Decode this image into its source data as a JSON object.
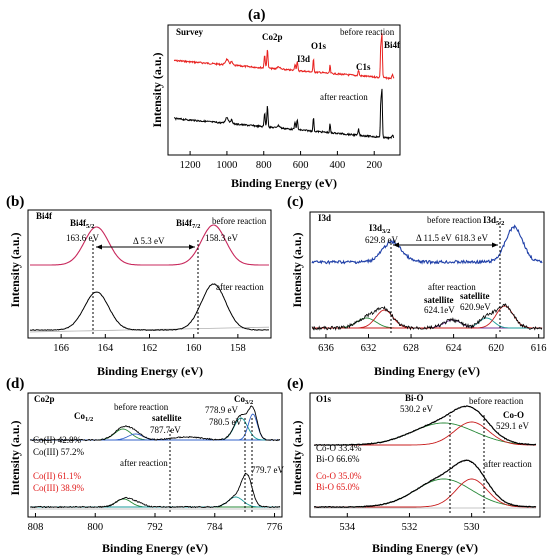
{
  "panels": [
    {
      "id": "a",
      "letter": "(a)",
      "name_label": "Survey",
      "xlabel": "Binding Energy (eV)",
      "ylabel": "Intensity (a.u.)",
      "xlim": [
        1320,
        60
      ],
      "xticks": [
        1200,
        1000,
        800,
        600,
        400,
        200
      ],
      "curve_labels": [
        "before reaction",
        "after reaction"
      ],
      "peak_labels": [
        "Co2p",
        "O1s",
        "I3d",
        "C1s",
        "Bi4f"
      ]
    },
    {
      "id": "b",
      "letter": "(b)",
      "name_label": "Bi4f",
      "xlabel": "Binding Energy (eV)",
      "ylabel": "Intensity (a.u.)",
      "xlim": [
        167.5,
        156.5
      ],
      "xticks": [
        166,
        164,
        162,
        160,
        158
      ],
      "annotations": {
        "peak1": "Bi4f",
        "peak1_sub": "5/2",
        "peak1_value": "163.6 eV",
        "peak2": "Bi4f",
        "peak2_sub": "7/2",
        "peak2_value": "158.3 eV",
        "delta": "Δ 5.3 eV",
        "before": "before reaction",
        "after": "after reaction"
      }
    },
    {
      "id": "c",
      "letter": "(c)",
      "name_label": "I3d",
      "xlabel": "Binding Energy (eV)",
      "ylabel": "Intensity (a.u.)",
      "xlim": [
        637.5,
        615.5
      ],
      "xticks": [
        636,
        632,
        628,
        624,
        620,
        616
      ],
      "annotations": {
        "peak1": "I3d",
        "peak1_sub": "3/2",
        "peak1_value": "629.8 eV",
        "peak2": "I3d",
        "peak2_sub": "5/2",
        "peak2_value": "618.3 eV",
        "delta": "Δ 11.5 eV",
        "before": "before reaction",
        "after": "after reaction",
        "sat1": "satellite",
        "sat1_value": "624.1eV",
        "sat2": "satellite",
        "sat2_value": "620.9eV"
      }
    },
    {
      "id": "d",
      "letter": "(d)",
      "name_label": "Co2p",
      "xlabel": "Binding Energy (eV)",
      "ylabel": "Intensity (a.u.)",
      "xlim": [
        809,
        775
      ],
      "xticks": [
        808,
        800,
        792,
        784,
        776
      ],
      "annotations": {
        "co12": "Co",
        "co12_sub": "1/2",
        "co32": "Co",
        "co32_sub": "3/2",
        "satellite": "satellite",
        "sat_value": "787.7eV",
        "v7789": "778.9 eV",
        "v7805": "780.5 eV",
        "v7797": "779.7 eV",
        "before": "before reaction",
        "after": "after reaction",
        "ratio_before_1": "Co(II) 42.8%",
        "ratio_before_2": "Co(III) 57.2%",
        "ratio_after_1": "Co(II) 61.1%",
        "ratio_after_2": "Co(III) 38.9%"
      }
    },
    {
      "id": "e",
      "letter": "(e)",
      "name_label": "O1s",
      "xlabel": "Binding Energy (eV)",
      "ylabel": "Intensity (a.u.)",
      "xlim": [
        535.2,
        527.8
      ],
      "xticks": [
        534,
        532,
        530
      ],
      "annotations": {
        "bio": "Bi-O",
        "bio_value": "530.2 eV",
        "coo": "Co-O",
        "coo_value": "529.1 eV",
        "before": "before reaction",
        "after": "after reaction",
        "ratio_before_1": "Co-O 33.4%",
        "ratio_before_2": "Bi-O 66.6%",
        "ratio_after_1": "Co-O 35.0%",
        "ratio_after_2": "Bi-O 65.0%"
      }
    }
  ],
  "colors": {
    "before_survey": "#e8201e",
    "after_survey": "#000000",
    "envelope_bi": "#c8285c",
    "envelope_i": "#2040a8",
    "fit_red": "#c81e1e",
    "fit_green": "#2a8a3a",
    "fit_blue": "#3060c8",
    "fit_teal": "#1a9a9a",
    "fit_purple": "#7a3a9a",
    "baseline": "#b0b0b0",
    "ratio_red": "#e01818"
  },
  "chart_data": [
    {
      "type": "line",
      "panel": "a",
      "title": "Survey",
      "xlabel": "Binding Energy (eV)",
      "ylabel": "Intensity (a.u.)",
      "xlim": [
        1320,
        60
      ],
      "series": [
        {
          "name": "before reaction",
          "peaks_eV": [
            1000,
            780,
            630,
            530,
            285,
            160
          ]
        },
        {
          "name": "after reaction",
          "peaks_eV": [
            1000,
            780,
            630,
            530,
            285,
            160
          ]
        }
      ]
    },
    {
      "type": "line",
      "panel": "b",
      "title": "Bi4f",
      "xlabel": "Binding Energy (eV)",
      "ylabel": "Intensity (a.u.)",
      "xlim": [
        167.5,
        156.5
      ],
      "series": [
        {
          "name": "before reaction",
          "peaks_eV": [
            163.6,
            158.3
          ]
        },
        {
          "name": "after reaction",
          "peaks_eV": [
            164.4,
            159.1
          ]
        }
      ]
    },
    {
      "type": "line",
      "panel": "c",
      "title": "I3d",
      "xlabel": "Binding Energy (eV)",
      "ylabel": "Intensity (a.u.)",
      "xlim": [
        637.5,
        615.5
      ],
      "series": [
        {
          "name": "before reaction",
          "peaks_eV": [
            629.8,
            618.3
          ]
        },
        {
          "name": "after reaction",
          "peaks_eV": [
            630.6,
            624.1,
            620.9,
            619.2
          ]
        }
      ]
    },
    {
      "type": "line",
      "panel": "d",
      "title": "Co2p",
      "xlabel": "Binding Energy (eV)",
      "ylabel": "Intensity (a.u.)",
      "xlim": [
        809,
        775
      ],
      "series": [
        {
          "name": "before reaction",
          "peaks_eV": [
            795.5,
            787.7,
            780.5,
            778.9
          ]
        },
        {
          "name": "after reaction",
          "peaks_eV": [
            795.5,
            779.7
          ]
        }
      ]
    },
    {
      "type": "line",
      "panel": "e",
      "title": "O1s",
      "xlabel": "Binding Energy (eV)",
      "ylabel": "Intensity (a.u.)",
      "xlim": [
        535.2,
        527.8
      ],
      "series": [
        {
          "name": "before reaction",
          "peaks_eV": [
            530.2,
            529.1
          ]
        },
        {
          "name": "after reaction",
          "peaks_eV": [
            530.9,
            530.0
          ]
        }
      ]
    }
  ]
}
